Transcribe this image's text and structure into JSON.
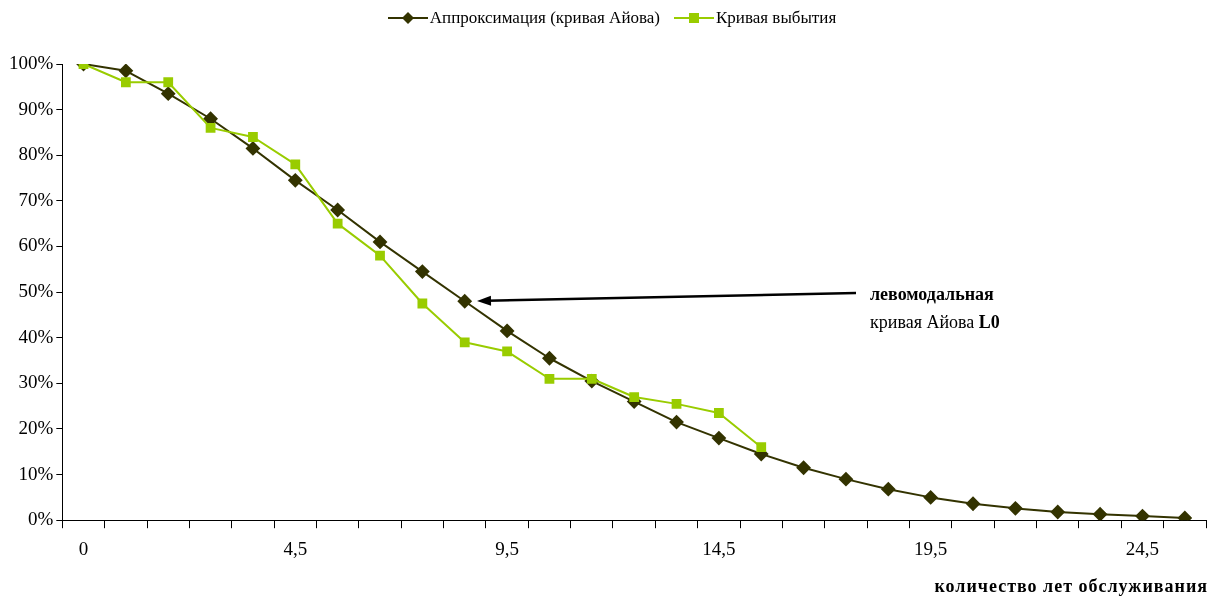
{
  "chart_data": {
    "type": "line",
    "categories": [
      "0",
      null,
      null,
      null,
      null,
      "4,5",
      null,
      null,
      null,
      null,
      "9,5",
      null,
      null,
      null,
      null,
      "14,5",
      null,
      null,
      null,
      null,
      "19,5",
      null,
      null,
      null,
      null,
      "24,5",
      null
    ],
    "series": [
      {
        "name": "Аппроксимация (кривая Айова)",
        "color": "#333300",
        "marker": "diamond",
        "values": [
          100,
          98.5,
          93.5,
          88,
          81.5,
          74.5,
          68,
          61,
          54.5,
          48,
          41.5,
          35.5,
          30.5,
          26,
          21.5,
          18,
          14.5,
          11.5,
          9,
          6.8,
          5,
          3.6,
          2.6,
          1.8,
          1.3,
          0.9,
          0.5
        ]
      },
      {
        "name": "Кривая выбытия",
        "color": "#99cc00",
        "marker": "square",
        "values": [
          100,
          96,
          96,
          86,
          84,
          78,
          65,
          58,
          47.5,
          39,
          37,
          31,
          31,
          27,
          25.5,
          23.5,
          16,
          null,
          null,
          null,
          null,
          null,
          null,
          null,
          null,
          null,
          null
        ]
      }
    ],
    "xlabel": "количество лет обслуживания",
    "ylim": [
      0,
      100
    ],
    "yticks": [
      {
        "value": 0,
        "label": "0%"
      },
      {
        "value": 10,
        "label": "10%"
      },
      {
        "value": 20,
        "label": "20%"
      },
      {
        "value": 30,
        "label": "30%"
      },
      {
        "value": 40,
        "label": "40%"
      },
      {
        "value": 50,
        "label": "50%"
      },
      {
        "value": 60,
        "label": "60%"
      },
      {
        "value": 70,
        "label": "70%"
      },
      {
        "value": 80,
        "label": "80%"
      },
      {
        "value": 90,
        "label": "90%"
      },
      {
        "value": 100,
        "label": "100%"
      }
    ],
    "annotations": [
      "левомодальная\nкривая Айова L0"
    ],
    "grid": false,
    "legend": "top",
    "line_style": "solid"
  }
}
